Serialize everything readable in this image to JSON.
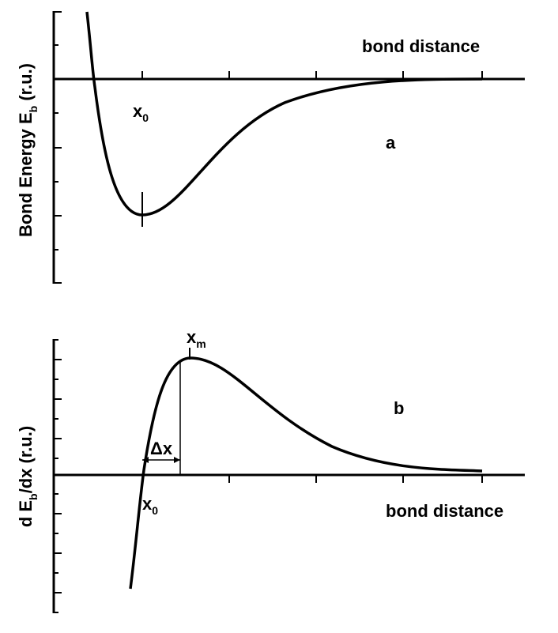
{
  "panel_a": {
    "y_label": {
      "main": "Bond Energy  E",
      "sub": "b",
      "tail": " (r.u.)"
    },
    "x_label": "bond distance",
    "marker": {
      "main": "x",
      "sub": "0"
    },
    "letter": "a"
  },
  "panel_b": {
    "y_label": {
      "main": "d E",
      "sub": "b",
      "tail": "/dx (r.u.)"
    },
    "x_label": "bond distance",
    "marker_max": {
      "main": "x",
      "sub": "m"
    },
    "marker_zero": {
      "main": "x",
      "sub": "0"
    },
    "delta": "Δx",
    "letter": "b"
  }
}
